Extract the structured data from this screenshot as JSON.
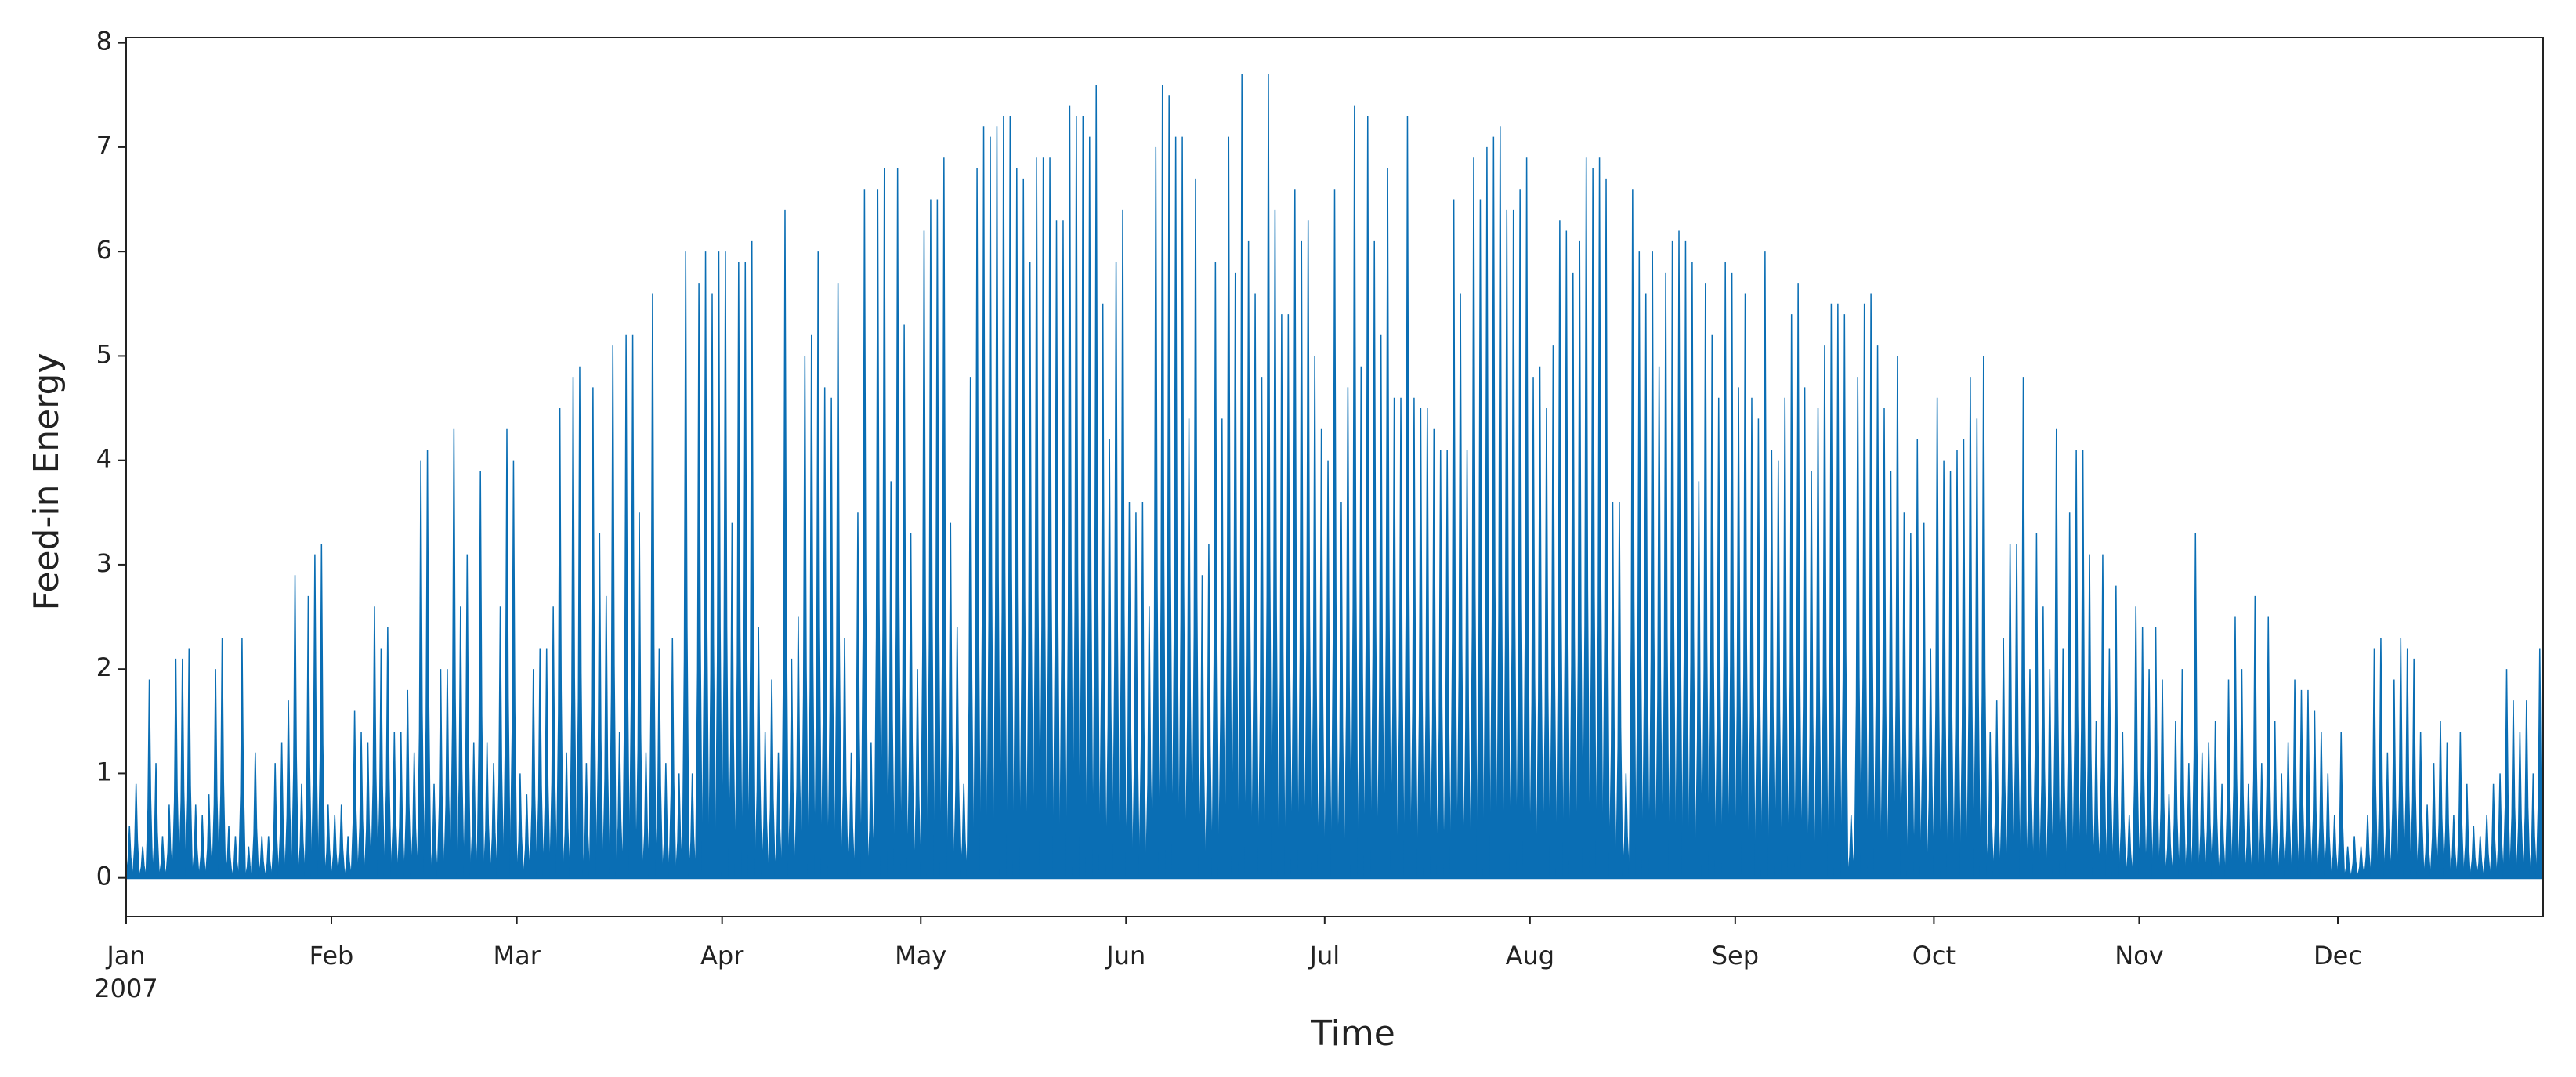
{
  "chart_data": {
    "type": "spike",
    "xlabel": "Time",
    "ylabel": "Feed-in Energy",
    "color": "#0a6eb4",
    "xlim": [
      0,
      365
    ],
    "xticks": [
      {
        "value": 0,
        "label": "Jan"
      },
      {
        "value": 31,
        "label": "Feb"
      },
      {
        "value": 59,
        "label": "Mar"
      },
      {
        "value": 90,
        "label": "Apr"
      },
      {
        "value": 120,
        "label": "May"
      },
      {
        "value": 151,
        "label": "Jun"
      },
      {
        "value": 181,
        "label": "Jul"
      },
      {
        "value": 212,
        "label": "Aug"
      },
      {
        "value": 243,
        "label": "Sep"
      },
      {
        "value": 273,
        "label": "Oct"
      },
      {
        "value": 304,
        "label": "Nov"
      },
      {
        "value": 334,
        "label": "Dec"
      }
    ],
    "xtick_year": "2007",
    "ylim": [
      -0.37,
      8.05
    ],
    "yticks": [
      0,
      1,
      2,
      3,
      4,
      5,
      6,
      7,
      8
    ],
    "values": [
      0.5,
      0.9,
      0.3,
      1.9,
      1.1,
      0.4,
      0.7,
      2.1,
      2.1,
      2.2,
      0.7,
      0.6,
      0.8,
      2.0,
      2.3,
      0.5,
      0.4,
      2.3,
      0.3,
      1.2,
      0.4,
      0.4,
      1.1,
      1.3,
      1.7,
      2.9,
      0.9,
      2.7,
      3.1,
      3.2,
      0.7,
      0.6,
      0.7,
      0.4,
      1.6,
      1.4,
      1.3,
      2.6,
      2.2,
      2.4,
      1.4,
      1.4,
      1.8,
      1.2,
      4.0,
      4.1,
      0.9,
      2.0,
      2.0,
      4.3,
      2.6,
      3.1,
      1.3,
      3.9,
      1.3,
      1.1,
      2.6,
      4.3,
      4.0,
      1.0,
      0.8,
      2.0,
      2.2,
      2.2,
      2.6,
      4.5,
      1.2,
      4.8,
      4.9,
      1.1,
      4.7,
      3.3,
      2.7,
      5.1,
      1.4,
      5.2,
      5.2,
      3.5,
      1.2,
      5.6,
      2.2,
      1.1,
      2.3,
      1.0,
      6.0,
      1.0,
      5.7,
      6.0,
      5.6,
      6.0,
      6.0,
      3.4,
      5.9,
      5.9,
      6.1,
      2.4,
      1.4,
      1.9,
      1.2,
      6.4,
      2.1,
      2.5,
      5.0,
      5.2,
      6.0,
      4.7,
      4.6,
      5.7,
      2.3,
      1.2,
      3.5,
      6.6,
      1.3,
      6.6,
      6.8,
      3.8,
      6.8,
      5.3,
      3.3,
      2.0,
      6.2,
      6.5,
      6.5,
      6.9,
      3.4,
      2.4,
      0.9,
      4.8,
      6.8,
      7.2,
      7.1,
      7.2,
      7.3,
      7.3,
      6.8,
      6.7,
      5.9,
      6.9,
      6.9,
      6.9,
      6.3,
      6.3,
      7.4,
      7.3,
      7.3,
      7.1,
      7.6,
      5.5,
      4.2,
      5.9,
      6.4,
      3.6,
      3.5,
      3.6,
      2.6,
      7.0,
      7.6,
      7.5,
      7.1,
      7.1,
      4.4,
      6.7,
      2.9,
      3.2,
      5.9,
      4.4,
      7.1,
      5.8,
      7.7,
      6.1,
      5.6,
      4.8,
      7.7,
      6.4,
      5.4,
      5.4,
      6.6,
      6.1,
      6.3,
      5.0,
      4.3,
      4.0,
      6.6,
      3.6,
      4.7,
      7.4,
      4.9,
      7.3,
      6.1,
      5.2,
      6.8,
      4.6,
      4.6,
      7.3,
      4.6,
      4.5,
      4.5,
      4.3,
      4.1,
      4.1,
      6.5,
      5.6,
      4.1,
      6.9,
      6.5,
      7.0,
      7.1,
      7.2,
      6.4,
      6.4,
      6.6,
      6.9,
      4.8,
      4.9,
      4.5,
      5.1,
      6.3,
      6.2,
      5.8,
      6.1,
      6.9,
      6.8,
      6.9,
      6.7,
      3.6,
      3.6,
      1.0,
      6.6,
      6.0,
      5.6,
      6.0,
      4.9,
      5.8,
      6.1,
      6.2,
      6.1,
      5.9,
      3.8,
      5.7,
      5.2,
      4.6,
      5.9,
      5.8,
      4.7,
      5.6,
      4.6,
      4.4,
      6.0,
      4.1,
      4.0,
      4.6,
      5.4,
      5.7,
      4.7,
      3.9,
      4.5,
      5.1,
      5.5,
      5.5,
      5.4,
      0.6,
      4.8,
      5.5,
      5.6,
      5.1,
      4.5,
      3.9,
      5.0,
      3.5,
      3.3,
      4.2,
      3.4,
      2.2,
      4.6,
      4.0,
      3.9,
      4.1,
      4.2,
      4.8,
      4.4,
      5.0,
      1.4,
      1.7,
      2.3,
      3.2,
      3.2,
      4.8,
      2.0,
      3.3,
      2.6,
      2.0,
      4.3,
      2.2,
      3.5,
      4.1,
      4.1,
      3.1,
      1.5,
      3.1,
      2.2,
      2.8,
      1.4,
      0.6,
      2.6,
      2.4,
      2.0,
      2.4,
      1.9,
      0.8,
      1.5,
      2.0,
      1.1,
      3.3,
      1.2,
      1.3,
      1.5,
      0.9,
      1.9,
      2.5,
      2.0,
      0.9,
      2.7,
      1.1,
      2.5,
      1.5,
      1.0,
      1.3,
      1.9,
      1.8,
      1.8,
      1.6,
      1.4,
      1.0,
      0.6,
      1.4,
      0.3,
      0.4,
      0.3,
      0.6,
      2.2,
      2.3,
      1.2,
      1.9,
      2.3,
      2.2,
      2.1,
      1.4,
      0.7,
      1.1,
      1.5,
      1.3,
      0.6,
      1.4,
      0.9,
      0.5,
      0.4,
      0.6,
      0.9,
      1.0,
      2.0,
      1.7,
      1.4,
      1.7,
      1.0,
      2.2
    ]
  }
}
